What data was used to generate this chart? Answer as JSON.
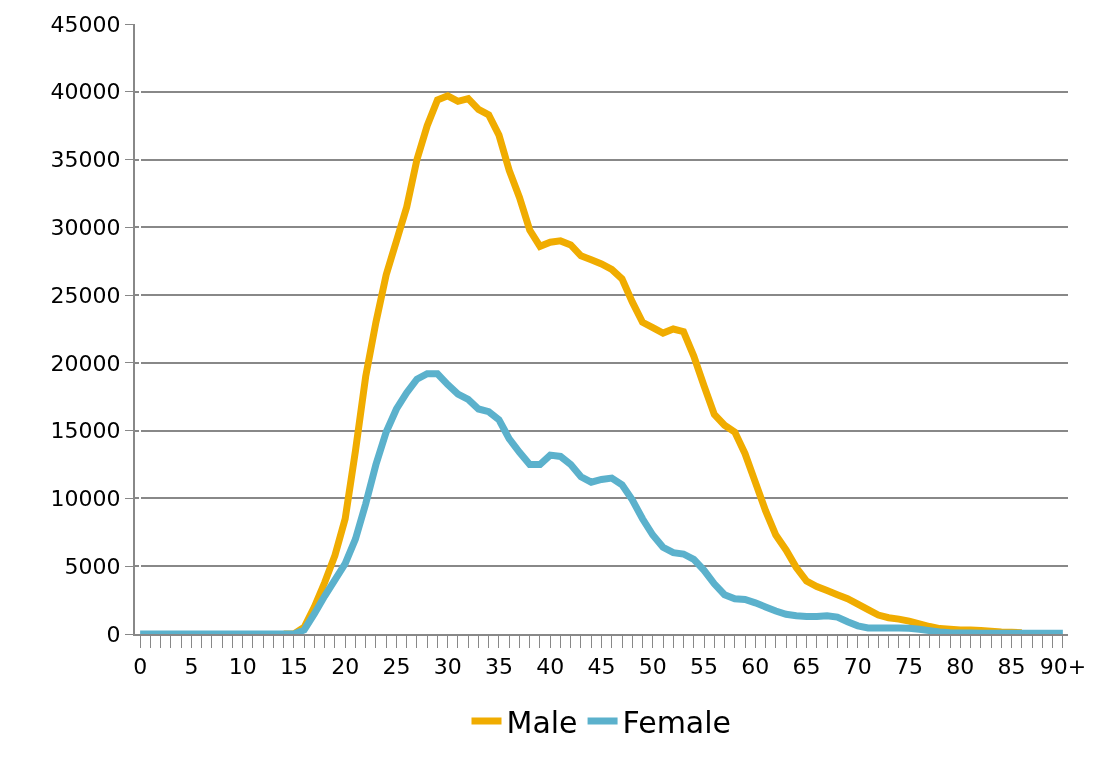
{
  "chart_data": {
    "type": "line",
    "categories": [
      "0",
      null,
      null,
      null,
      null,
      "5",
      null,
      null,
      null,
      null,
      "10",
      null,
      null,
      null,
      null,
      "15",
      null,
      null,
      null,
      null,
      "20",
      null,
      null,
      null,
      null,
      "25",
      null,
      null,
      null,
      null,
      "30",
      null,
      null,
      null,
      null,
      "35",
      null,
      null,
      null,
      null,
      "40",
      null,
      null,
      null,
      null,
      "45",
      null,
      null,
      null,
      null,
      "50",
      null,
      null,
      null,
      null,
      "55",
      null,
      null,
      null,
      null,
      "60",
      null,
      null,
      null,
      null,
      "65",
      null,
      null,
      null,
      null,
      "70",
      null,
      null,
      null,
      null,
      "75",
      null,
      null,
      null,
      null,
      "80",
      null,
      null,
      null,
      null,
      "85",
      null,
      null,
      null,
      null,
      "90+"
    ],
    "series": [
      {
        "name": "Male",
        "color": "#f0ac00",
        "values": [
          null,
          null,
          null,
          null,
          null,
          null,
          null,
          null,
          null,
          null,
          null,
          null,
          null,
          null,
          0,
          0,
          500,
          2000,
          3800,
          5800,
          8500,
          13500,
          19000,
          23000,
          26500,
          29000,
          31500,
          35000,
          37500,
          39400,
          39700,
          39300,
          39500,
          38700,
          38300,
          36800,
          34200,
          32200,
          29800,
          28600,
          28900,
          29000,
          28700,
          27900,
          27600,
          27300,
          26900,
          26200,
          24500,
          23000,
          22600,
          22200,
          22500,
          22300,
          20500,
          18300,
          16200,
          15400,
          14900,
          13300,
          11200,
          9100,
          7300,
          6200,
          4900,
          3900,
          3500,
          3200,
          2900,
          2600,
          2200,
          1800,
          1400,
          1200,
          1100,
          950,
          750,
          550,
          400,
          350,
          300,
          300,
          250,
          200,
          150,
          120,
          100,
          null,
          null,
          null,
          null
        ]
      },
      {
        "name": "Female",
        "color": "#5bb1cc",
        "values": [
          0,
          0,
          0,
          0,
          0,
          0,
          0,
          0,
          0,
          0,
          0,
          0,
          0,
          0,
          0,
          0,
          300,
          1500,
          2800,
          4000,
          5200,
          7000,
          9600,
          12500,
          14900,
          16600,
          17800,
          18800,
          19200,
          19200,
          18400,
          17700,
          17300,
          16600,
          16400,
          15800,
          14400,
          13400,
          12500,
          12500,
          13200,
          13100,
          12500,
          11600,
          11200,
          11400,
          11500,
          11000,
          9900,
          8500,
          7300,
          6400,
          6000,
          5900,
          5500,
          4700,
          3700,
          2900,
          2600,
          2550,
          2300,
          2000,
          1700,
          1450,
          1350,
          1300,
          1300,
          1350,
          1250,
          900,
          600,
          450,
          450,
          450,
          450,
          420,
          350,
          250,
          150,
          100,
          80,
          70,
          60,
          60,
          50,
          50,
          50,
          50,
          50,
          50,
          50
        ]
      }
    ],
    "ylim": [
      0,
      45000
    ],
    "yticks": [
      0,
      5000,
      10000,
      15000,
      20000,
      25000,
      30000,
      35000,
      40000,
      45000
    ],
    "grid": "y",
    "legend": "bottom",
    "marker": "none",
    "line_style": "solid"
  }
}
